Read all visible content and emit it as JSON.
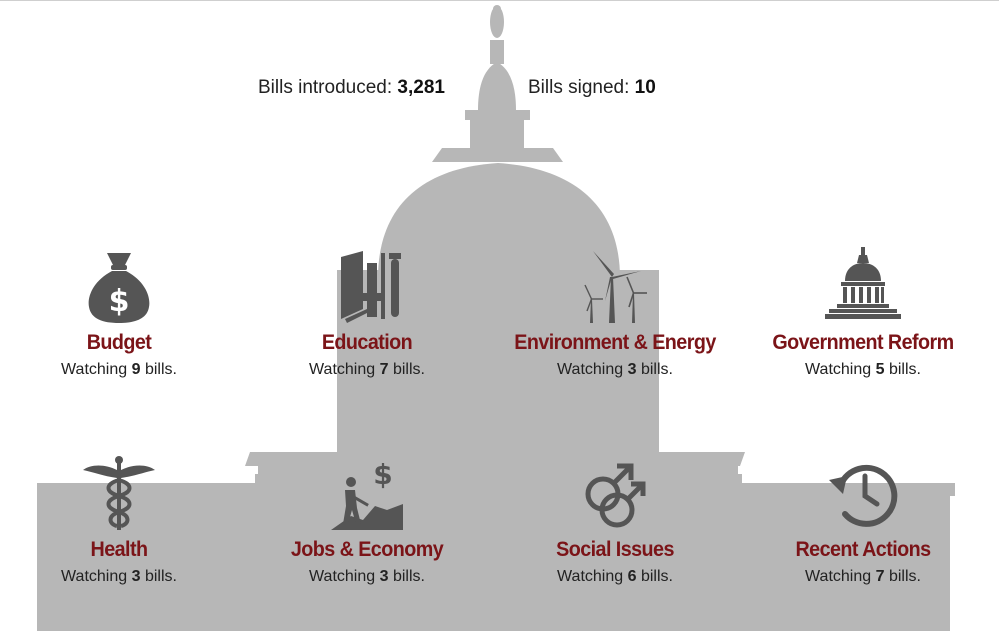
{
  "stats": {
    "introduced_label": "Bills introduced:",
    "introduced_value": "3,281",
    "signed_label": "Bills signed:",
    "signed_value": "10"
  },
  "watch_prefix": "Watching",
  "watch_suffix": "bills.",
  "colors": {
    "accent": "#7b1418",
    "capitol": "#b7b7b7",
    "icon": "#555555"
  },
  "categories": [
    {
      "name": "Budget",
      "count": "9",
      "icon": "money-bag-icon"
    },
    {
      "name": "Education",
      "count": "7",
      "icon": "books-icon"
    },
    {
      "name": "Environment & Energy",
      "count": "3",
      "icon": "wind-turbine-icon"
    },
    {
      "name": "Government Reform",
      "count": "5",
      "icon": "capitol-dome-icon"
    },
    {
      "name": "Health",
      "count": "3",
      "icon": "caduceus-icon"
    },
    {
      "name": "Jobs & Economy",
      "count": "3",
      "icon": "worker-dollar-icon"
    },
    {
      "name": "Social Issues",
      "count": "6",
      "icon": "gender-symbols-icon"
    },
    {
      "name": "Recent Actions",
      "count": "7",
      "icon": "clock-history-icon"
    }
  ]
}
